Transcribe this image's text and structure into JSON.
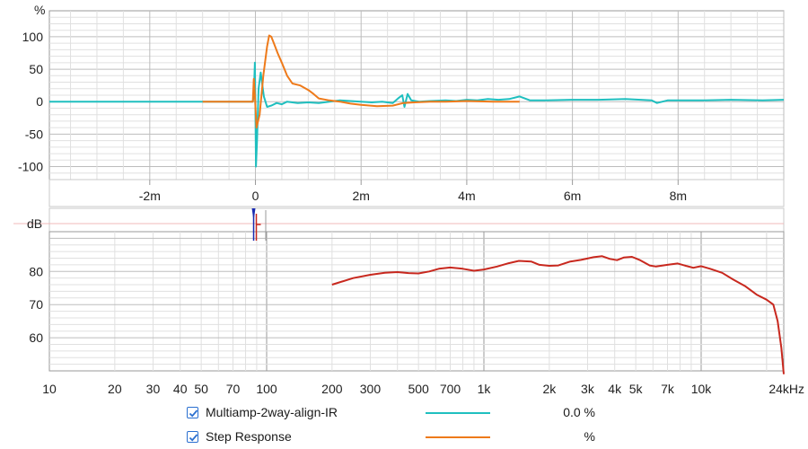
{
  "colors": {
    "ir": "#1fbfbf",
    "step": "#ee7a1a",
    "spl": "#c8281e",
    "grid_major": "#bdbdbd",
    "grid_minor": "#e0e0e0",
    "checkbox": "#2a6fd0"
  },
  "legend": [
    {
      "name": "Multiamp-2way-align-IR",
      "value": "0.0 %",
      "color_key": "ir",
      "checked": true
    },
    {
      "name": "Step Response",
      "value": "%",
      "color_key": "step",
      "checked": true
    }
  ],
  "chart_data": [
    {
      "type": "line",
      "ylabel": "%",
      "ylim": [
        -120,
        140
      ],
      "yticks": [
        100,
        50,
        0,
        -50,
        -100
      ],
      "grid": true,
      "series": [
        {
          "name": "Multiamp-2way-align-IR",
          "color_key": "ir",
          "points": [
            [
              -3.9,
              0
            ],
            [
              -0.05,
              0
            ],
            [
              -0.04,
              5
            ],
            [
              -0.02,
              35
            ],
            [
              -0.01,
              60
            ],
            [
              0,
              -10
            ],
            [
              0.01,
              -100
            ],
            [
              0.03,
              -60
            ],
            [
              0.06,
              20
            ],
            [
              0.1,
              45
            ],
            [
              0.16,
              8
            ],
            [
              0.22,
              -8
            ],
            [
              0.3,
              -6
            ],
            [
              0.4,
              -2
            ],
            [
              0.5,
              -4
            ],
            [
              0.6,
              0
            ],
            [
              0.8,
              -2
            ],
            [
              1.0,
              -1
            ],
            [
              1.2,
              -2
            ],
            [
              1.4,
              0
            ],
            [
              1.6,
              2
            ],
            [
              1.8,
              1
            ],
            [
              2.0,
              0
            ],
            [
              2.2,
              -1
            ],
            [
              2.4,
              0
            ],
            [
              2.6,
              -2
            ],
            [
              2.7,
              5
            ],
            [
              2.78,
              10
            ],
            [
              2.82,
              -8
            ],
            [
              2.88,
              12
            ],
            [
              2.95,
              2
            ],
            [
              3.1,
              0
            ],
            [
              3.3,
              1
            ],
            [
              3.6,
              2
            ],
            [
              3.8,
              1
            ],
            [
              4.0,
              3
            ],
            [
              4.2,
              2
            ],
            [
              4.4,
              4
            ],
            [
              4.6,
              3
            ],
            [
              4.8,
              4
            ],
            [
              5.0,
              8
            ],
            [
              5.2,
              2
            ],
            [
              5.5,
              2
            ],
            [
              6.0,
              3
            ],
            [
              6.5,
              3
            ],
            [
              7.0,
              4
            ],
            [
              7.5,
              2
            ],
            [
              7.6,
              -2
            ],
            [
              7.8,
              2
            ],
            [
              8.5,
              2
            ],
            [
              9.0,
              3
            ],
            [
              9.6,
              2
            ],
            [
              10.0,
              3
            ]
          ]
        },
        {
          "name": "Step Response",
          "color_key": "step",
          "points": [
            [
              -1.0,
              0
            ],
            [
              -0.05,
              0
            ],
            [
              -0.03,
              35
            ],
            [
              -0.01,
              10
            ],
            [
              0.02,
              -40
            ],
            [
              0.08,
              -20
            ],
            [
              0.15,
              40
            ],
            [
              0.22,
              85
            ],
            [
              0.26,
              102
            ],
            [
              0.3,
              100
            ],
            [
              0.35,
              90
            ],
            [
              0.42,
              75
            ],
            [
              0.5,
              60
            ],
            [
              0.6,
              40
            ],
            [
              0.7,
              28
            ],
            [
              0.85,
              25
            ],
            [
              1.0,
              18
            ],
            [
              1.1,
              12
            ],
            [
              1.2,
              5
            ],
            [
              1.4,
              2
            ],
            [
              1.6,
              0
            ],
            [
              1.8,
              -3
            ],
            [
              2.0,
              -5
            ],
            [
              2.3,
              -7
            ],
            [
              2.6,
              -6
            ],
            [
              2.8,
              -2
            ],
            [
              3.0,
              -1
            ],
            [
              3.3,
              0
            ],
            [
              3.6,
              0
            ],
            [
              4.0,
              1
            ],
            [
              4.5,
              0
            ],
            [
              5.0,
              0
            ]
          ]
        }
      ]
    },
    {
      "type": "line",
      "xlabel": "",
      "xlim": [
        -3.9,
        10
      ],
      "xticks": [
        -2,
        0,
        2,
        4,
        6,
        8
      ],
      "xtick_labels": [
        "-2m",
        "0",
        "2m",
        "4m",
        "6m",
        "8m"
      ],
      "grid": true
    },
    {
      "type": "line",
      "ylabel": "dB",
      "grid": true
    },
    {
      "type": "line",
      "xscale": "log",
      "xlim": [
        10,
        24000
      ],
      "ylim": [
        50,
        92
      ],
      "yticks": [
        80,
        70,
        60
      ],
      "xticks": [
        10,
        20,
        30,
        40,
        50,
        70,
        100,
        200,
        300,
        500,
        700,
        1000,
        2000,
        3000,
        4000,
        5000,
        7000,
        10000,
        24000
      ],
      "xtick_labels": [
        "10",
        "20",
        "30",
        "40",
        "50",
        "70",
        "100",
        "200",
        "300",
        "500",
        "700",
        "1k",
        "2k",
        "3k",
        "4k",
        "5k",
        "7k",
        "10k",
        "24kHz"
      ],
      "grid": true,
      "series": [
        {
          "color_key": "spl",
          "points": [
            [
              200,
              76
            ],
            [
              250,
              78
            ],
            [
              300,
              79
            ],
            [
              350,
              79.6
            ],
            [
              400,
              79.8
            ],
            [
              450,
              79.5
            ],
            [
              500,
              79.4
            ],
            [
              560,
              80
            ],
            [
              620,
              80.8
            ],
            [
              700,
              81.2
            ],
            [
              800,
              80.8
            ],
            [
              900,
              80.2
            ],
            [
              1000,
              80.6
            ],
            [
              1150,
              81.5
            ],
            [
              1300,
              82.5
            ],
            [
              1450,
              83.2
            ],
            [
              1650,
              83
            ],
            [
              1800,
              82
            ],
            [
              2000,
              81.7
            ],
            [
              2200,
              81.8
            ],
            [
              2500,
              83
            ],
            [
              2800,
              83.5
            ],
            [
              3200,
              84.3
            ],
            [
              3500,
              84.6
            ],
            [
              3800,
              83.8
            ],
            [
              4100,
              83.4
            ],
            [
              4400,
              84.2
            ],
            [
              4800,
              84.4
            ],
            [
              5200,
              83.5
            ],
            [
              5800,
              81.8
            ],
            [
              6200,
              81.5
            ],
            [
              7000,
              82
            ],
            [
              7800,
              82.4
            ],
            [
              8500,
              81.7
            ],
            [
              9200,
              81.1
            ],
            [
              10000,
              81.6
            ],
            [
              11000,
              80.8
            ],
            [
              12500,
              79.6
            ],
            [
              14000,
              77.6
            ],
            [
              16000,
              75.5
            ],
            [
              18000,
              73
            ],
            [
              20000,
              71.5
            ],
            [
              21500,
              70
            ],
            [
              22500,
              65
            ],
            [
              23400,
              57
            ],
            [
              24000,
              49
            ]
          ]
        }
      ]
    }
  ]
}
